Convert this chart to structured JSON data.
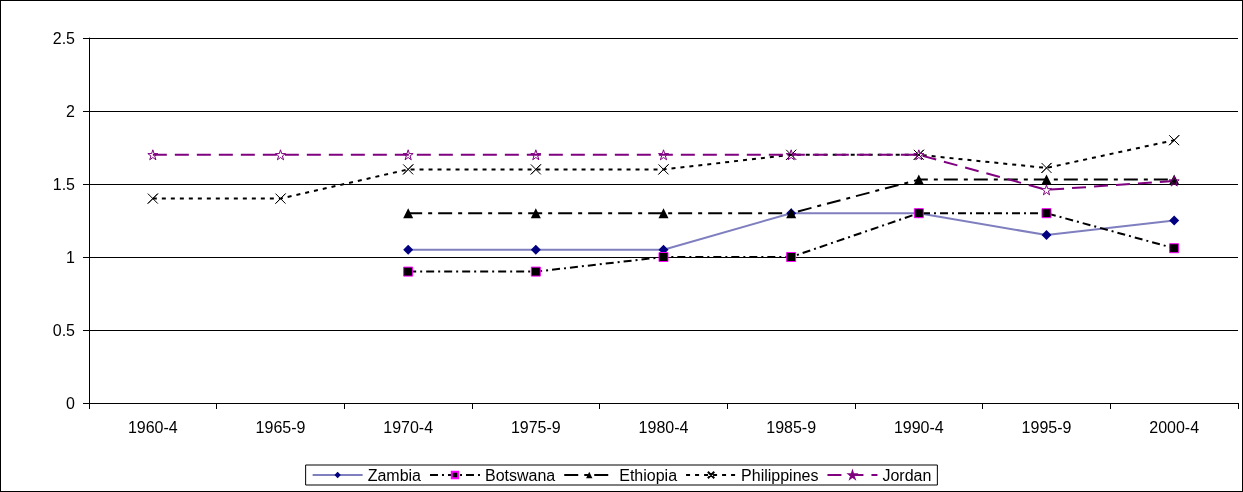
{
  "chart_data": {
    "type": "line",
    "categories": [
      "1960-4",
      "1965-9",
      "1970-4",
      "1975-9",
      "1980-4",
      "1985-9",
      "1990-4",
      "1995-9",
      "2000-4"
    ],
    "series": [
      {
        "name": "Zambia",
        "color": "#7f7fc0",
        "marker": "diamond",
        "line_style": "solid",
        "values": [
          null,
          null,
          1.05,
          1.05,
          1.05,
          1.3,
          1.3,
          1.15,
          1.25
        ]
      },
      {
        "name": "Botswana",
        "color": "#000000",
        "marker": "square",
        "line_style": "dashed",
        "values": [
          null,
          null,
          0.9,
          0.9,
          1.0,
          1.0,
          1.3,
          1.3,
          1.06
        ]
      },
      {
        "name": "Ethiopia",
        "color": "#000000",
        "marker": "triangle",
        "line_style": "dashed",
        "values": [
          null,
          null,
          1.3,
          1.3,
          1.3,
          1.3,
          1.53,
          1.53,
          1.53
        ]
      },
      {
        "name": "Philippines",
        "color": "#000000",
        "marker": "cross",
        "line_style": "dotted",
        "values": [
          1.4,
          1.4,
          1.6,
          1.6,
          1.6,
          1.7,
          1.7,
          1.61,
          1.8
        ]
      },
      {
        "name": "Jordan",
        "color": "#800080",
        "marker": "star",
        "line_style": "dashed",
        "values": [
          1.7,
          1.7,
          1.7,
          1.7,
          1.7,
          1.7,
          1.7,
          1.46,
          1.52
        ]
      }
    ],
    "ylim": [
      0,
      2.5
    ],
    "yticks": [
      0,
      0.5,
      1,
      1.5,
      2,
      2.5
    ],
    "grid": "y",
    "legend": "bottom"
  }
}
